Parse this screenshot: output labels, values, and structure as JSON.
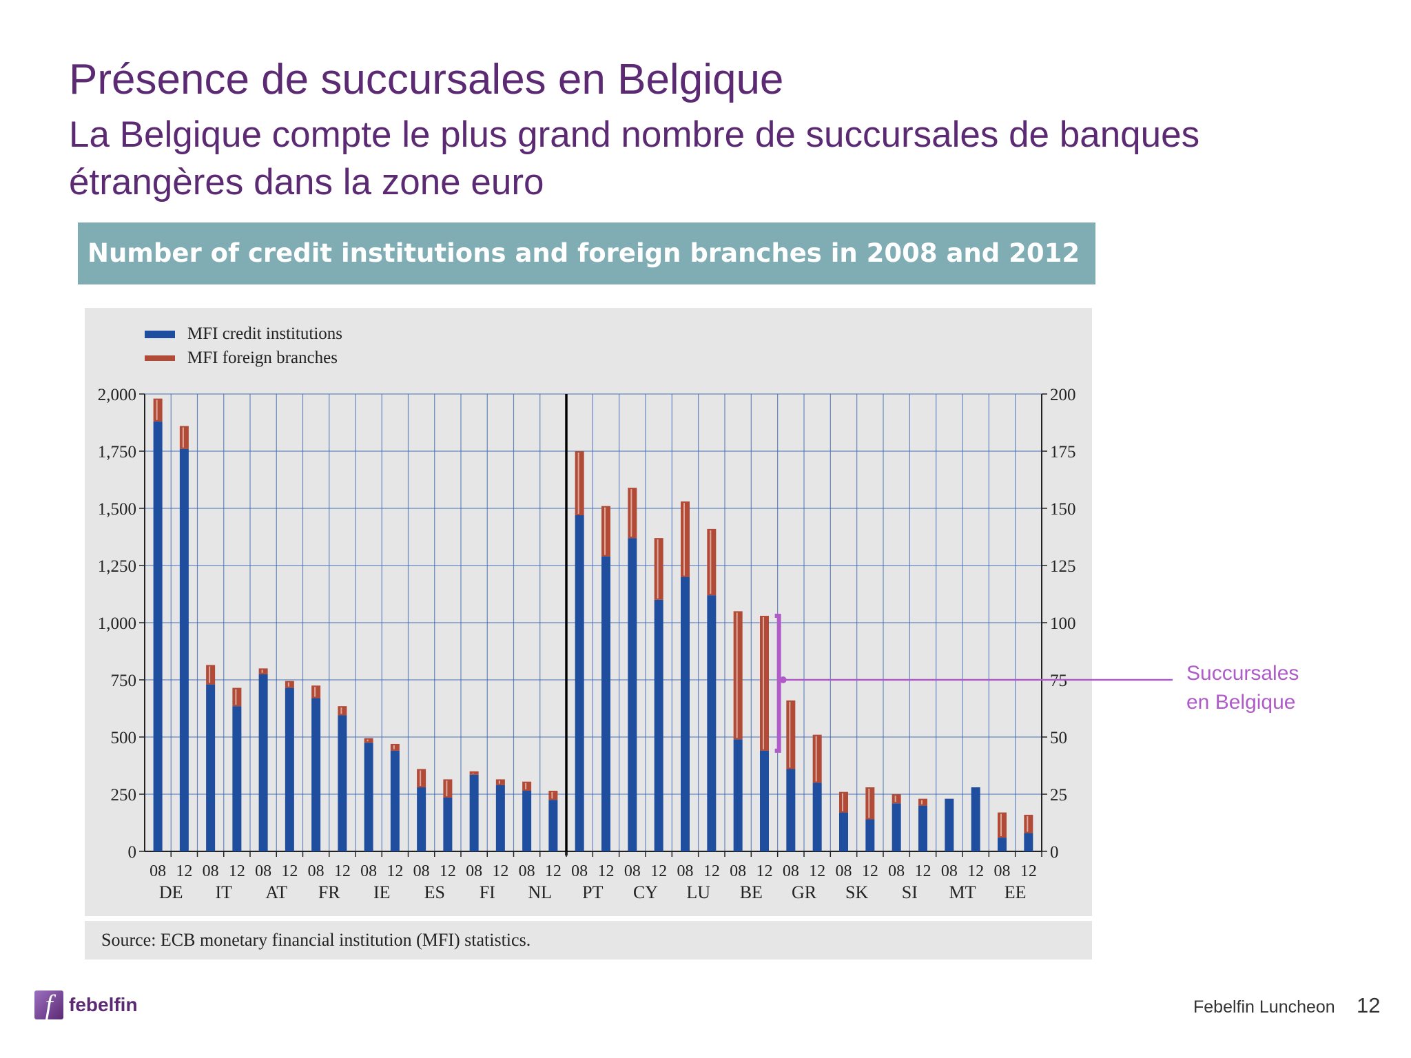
{
  "slide": {
    "title": "Présence de succursales en Belgique",
    "subtitle": "La Belgique compte le plus grand nombre de succursales de banques étrangères dans la zone euro",
    "footer_label": "Febelfin Luncheon",
    "page_number": "12",
    "logo_text": "febelfin",
    "logo_mark": "f"
  },
  "annotation": {
    "text_line1": "Succursales",
    "text_line2": "en Belgique",
    "color": "#b05cc8"
  },
  "chart_data": {
    "type": "bar",
    "stacked": true,
    "title": "Number of credit institutions and foreign branches in 2008 and 2012",
    "source": "Source: ECB monetary financial institution (MFI) statistics.",
    "legend": [
      "MFI credit institutions",
      "MFI foreign branches"
    ],
    "legend_position": "top-left",
    "colors": {
      "institutions": "#1f4e9f",
      "branches": "#b14a36",
      "grid": "#3a66b0"
    },
    "grid": true,
    "left_axis": {
      "ylim": [
        0,
        2000
      ],
      "ticks": [
        "0",
        "250",
        "500",
        "750",
        "1,000",
        "1,250",
        "1,500",
        "1,750",
        "2,000"
      ]
    },
    "right_axis": {
      "ylim": [
        0,
        200
      ],
      "ticks": [
        "0",
        "25",
        "50",
        "75",
        "100",
        "125",
        "150",
        "175",
        "200"
      ]
    },
    "groups": [
      {
        "country": "DE",
        "axis": "left",
        "years": [
          "08",
          "12"
        ],
        "institutions": [
          1880,
          1760
        ],
        "branches": [
          100,
          100
        ]
      },
      {
        "country": "IT",
        "axis": "left",
        "years": [
          "08",
          "12"
        ],
        "institutions": [
          730,
          635
        ],
        "branches": [
          85,
          80
        ]
      },
      {
        "country": "AT",
        "axis": "left",
        "years": [
          "08",
          "12"
        ],
        "institutions": [
          775,
          715
        ],
        "branches": [
          25,
          30
        ]
      },
      {
        "country": "FR",
        "axis": "left",
        "years": [
          "08",
          "12"
        ],
        "institutions": [
          670,
          595
        ],
        "branches": [
          55,
          40
        ]
      },
      {
        "country": "IE",
        "axis": "left",
        "years": [
          "08",
          "12"
        ],
        "institutions": [
          475,
          440
        ],
        "branches": [
          20,
          30
        ]
      },
      {
        "country": "ES",
        "axis": "left",
        "years": [
          "08",
          "12"
        ],
        "institutions": [
          280,
          235
        ],
        "branches": [
          80,
          80
        ]
      },
      {
        "country": "FI",
        "axis": "left",
        "years": [
          "08",
          "12"
        ],
        "institutions": [
          335,
          290
        ],
        "branches": [
          15,
          25
        ]
      },
      {
        "country": "NL",
        "axis": "left",
        "years": [
          "08",
          "12"
        ],
        "institutions": [
          265,
          225
        ],
        "branches": [
          40,
          40
        ]
      },
      {
        "country": "PT",
        "axis": "right",
        "years": [
          "08",
          "12"
        ],
        "institutions": [
          147,
          129
        ],
        "branches": [
          28,
          22
        ]
      },
      {
        "country": "CY",
        "axis": "right",
        "years": [
          "08",
          "12"
        ],
        "institutions": [
          137,
          110
        ],
        "branches": [
          22,
          27
        ]
      },
      {
        "country": "LU",
        "axis": "right",
        "years": [
          "08",
          "12"
        ],
        "institutions": [
          120,
          112
        ],
        "branches": [
          33,
          29
        ]
      },
      {
        "country": "BE",
        "axis": "right",
        "years": [
          "08",
          "12"
        ],
        "institutions": [
          49,
          44
        ],
        "branches": [
          56,
          59
        ]
      },
      {
        "country": "GR",
        "axis": "right",
        "years": [
          "08",
          "12"
        ],
        "institutions": [
          36,
          30
        ],
        "branches": [
          30,
          21
        ]
      },
      {
        "country": "SK",
        "axis": "right",
        "years": [
          "08",
          "12"
        ],
        "institutions": [
          17,
          14
        ],
        "branches": [
          9,
          14
        ]
      },
      {
        "country": "SI",
        "axis": "right",
        "years": [
          "08",
          "12"
        ],
        "institutions": [
          21,
          20
        ],
        "branches": [
          4,
          3
        ]
      },
      {
        "country": "MT",
        "axis": "right",
        "years": [
          "08",
          "12"
        ],
        "institutions": [
          23,
          28
        ],
        "branches": [
          0,
          0
        ]
      },
      {
        "country": "EE",
        "axis": "right",
        "years": [
          "08",
          "12"
        ],
        "institutions": [
          6,
          8
        ],
        "branches": [
          11,
          8
        ]
      }
    ]
  }
}
